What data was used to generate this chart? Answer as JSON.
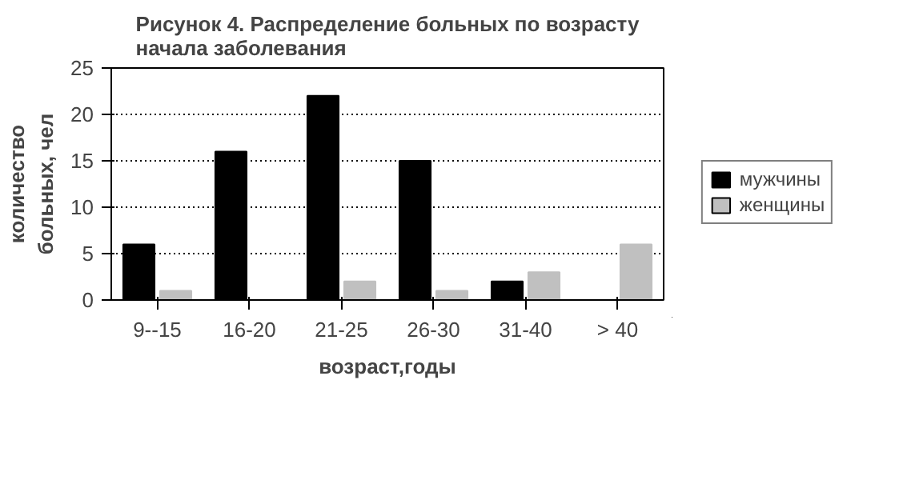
{
  "chart_data": {
    "type": "bar",
    "title": "Рисунок 4. Распределение больных по возрасту\nначала заболевания",
    "xlabel": "возраст,годы",
    "ylabel": "количество\nбольных, чел",
    "categories": [
      "9--15",
      "16-20",
      "21-25",
      "26-30",
      "31-40",
      "> 40"
    ],
    "series": [
      {
        "name": "мужчины",
        "color": "#000000",
        "values": [
          6,
          16,
          22,
          15,
          2,
          0
        ]
      },
      {
        "name": "женщины",
        "color": "#c0c0c0",
        "values": [
          1,
          0,
          2,
          1,
          3,
          6
        ]
      }
    ],
    "ylim": [
      0,
      25
    ],
    "yticks": [
      0,
      5,
      10,
      15,
      20,
      25
    ],
    "grid": "y",
    "legend": "right"
  }
}
